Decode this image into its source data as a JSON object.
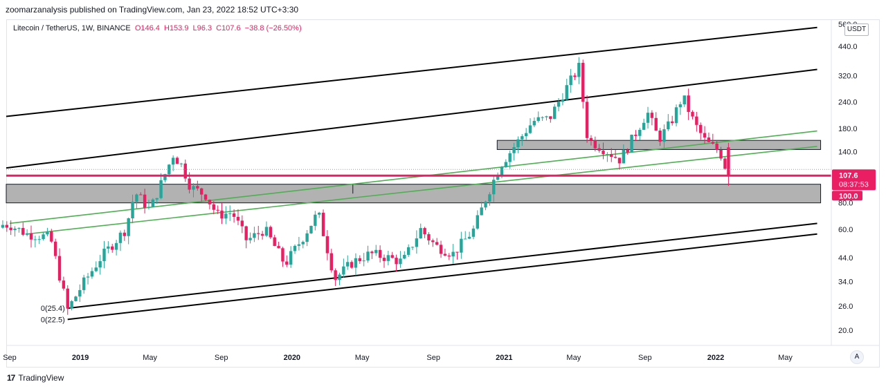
{
  "publisher_line": "zoomarzanalysis published on TradingView.com, Jan 23, 2022 18:52 UTC+3:30",
  "legend": {
    "symbol": "Litecoin / TetherUS, 1W, BINANCE",
    "open": "O146.4",
    "high": "H153.9",
    "low": "L96.3",
    "close": "C107.6",
    "change": "−38.8 (−26.50%)"
  },
  "currency_button": "USDT",
  "auto_button": "A",
  "brand": "TradingView",
  "colors": {
    "up": "#26a69a",
    "down": "#e91e63",
    "channel": "#000000",
    "trend": "#4caf50",
    "zone": "#b2b2b2",
    "price_line": "#e91e63"
  },
  "chart_data": {
    "type": "candlestick",
    "scale": "log",
    "ylim": [
      17,
      560
    ],
    "y_ticks": [
      "20.0",
      "26.0",
      "34.0",
      "44.0",
      "60.0",
      "80.0",
      "100.0",
      "140.0",
      "180.0",
      "240.0",
      "320.0",
      "440.0",
      "560.0"
    ],
    "x_ticks": [
      "Sep",
      "2019",
      "May",
      "Sep",
      "2020",
      "May",
      "Sep",
      "2021",
      "May",
      "Sep",
      "2022",
      "May"
    ],
    "x_tick_dates": [
      "2018-09-01",
      "2019-01-01",
      "2019-05-01",
      "2019-09-01",
      "2020-01-01",
      "2020-05-01",
      "2020-09-01",
      "2021-01-01",
      "2021-05-01",
      "2021-09-01",
      "2022-01-01",
      "2022-05-01"
    ],
    "last_price": {
      "value": 107.6,
      "label": "107.6",
      "countdown": "08:37:53"
    },
    "level_label": {
      "value": 100.0,
      "label": "100.0"
    },
    "annotations": [
      {
        "text": "0(25.4)",
        "date": "2018-12-10",
        "value": 25.4
      },
      {
        "text": "0(22.5)",
        "date": "2018-12-10",
        "value": 22.5
      }
    ],
    "zones": [
      {
        "from_date": "2018-08-20",
        "to_date": "2022-07-01",
        "low": 80,
        "high": 98
      },
      {
        "from_date": "2020-12-20",
        "to_date": "2022-07-01",
        "low": 143,
        "high": 158
      }
    ],
    "channel_lines": [
      {
        "from": {
          "date": "2018-08-20",
          "value": 205
        },
        "to": {
          "date": "2022-06-25",
          "value": 540
        }
      },
      {
        "from": {
          "date": "2018-08-20",
          "value": 117
        },
        "to": {
          "date": "2022-06-25",
          "value": 342
        }
      },
      {
        "from": {
          "date": "2018-12-10",
          "value": 25.4
        },
        "to": {
          "date": "2022-06-25",
          "value": 64
        }
      },
      {
        "from": {
          "date": "2018-12-10",
          "value": 22.5
        },
        "to": {
          "date": "2022-06-25",
          "value": 57
        }
      }
    ],
    "trend_lines": [
      {
        "from": {
          "date": "2018-09-01",
          "value": 64
        },
        "to": {
          "date": "2022-06-25",
          "value": 175
        }
      },
      {
        "from": {
          "date": "2018-10-01",
          "value": 57
        },
        "to": {
          "date": "2022-06-25",
          "value": 148
        }
      }
    ],
    "anchors": [
      [
        "2018-09-01",
        63
      ],
      [
        "2018-10-01",
        57
      ],
      [
        "2018-11-10",
        55
      ],
      [
        "2018-12-10",
        25
      ],
      [
        "2019-01-05",
        33
      ],
      [
        "2019-02-05",
        44
      ],
      [
        "2019-03-20",
        60
      ],
      [
        "2019-04-05",
        90
      ],
      [
        "2019-05-01",
        74
      ],
      [
        "2019-06-10",
        135
      ],
      [
        "2019-06-25",
        120
      ],
      [
        "2019-07-10",
        95
      ],
      [
        "2019-08-05",
        87
      ],
      [
        "2019-08-25",
        70
      ],
      [
        "2019-09-20",
        72
      ],
      [
        "2019-10-15",
        53
      ],
      [
        "2019-11-15",
        60
      ],
      [
        "2019-12-20",
        41
      ],
      [
        "2020-01-20",
        55
      ],
      [
        "2020-02-15",
        72
      ],
      [
        "2020-03-15",
        35
      ],
      [
        "2020-04-15",
        42
      ],
      [
        "2020-05-15",
        46
      ],
      [
        "2020-06-15",
        44
      ],
      [
        "2020-07-10",
        42
      ],
      [
        "2020-08-10",
        60
      ],
      [
        "2020-09-05",
        50
      ],
      [
        "2020-10-05",
        46
      ],
      [
        "2020-11-10",
        60
      ],
      [
        "2020-12-01",
        85
      ],
      [
        "2020-12-25",
        120
      ],
      [
        "2021-01-20",
        150
      ],
      [
        "2021-02-20",
        195
      ],
      [
        "2021-03-20",
        200
      ],
      [
        "2021-04-15",
        270
      ],
      [
        "2021-05-10",
        350
      ],
      [
        "2021-05-25",
        160
      ],
      [
        "2021-06-20",
        145
      ],
      [
        "2021-07-20",
        128
      ],
      [
        "2021-08-10",
        160
      ],
      [
        "2021-09-05",
        215
      ],
      [
        "2021-09-25",
        160
      ],
      [
        "2021-10-15",
        190
      ],
      [
        "2021-11-05",
        255
      ],
      [
        "2021-11-25",
        190
      ],
      [
        "2021-12-15",
        155
      ],
      [
        "2022-01-08",
        140
      ],
      [
        "2022-01-23",
        107.6
      ]
    ],
    "last_candle": {
      "date": "2022-01-23",
      "open": 146.4,
      "high": 153.9,
      "low": 96.3,
      "close": 107.6
    }
  }
}
